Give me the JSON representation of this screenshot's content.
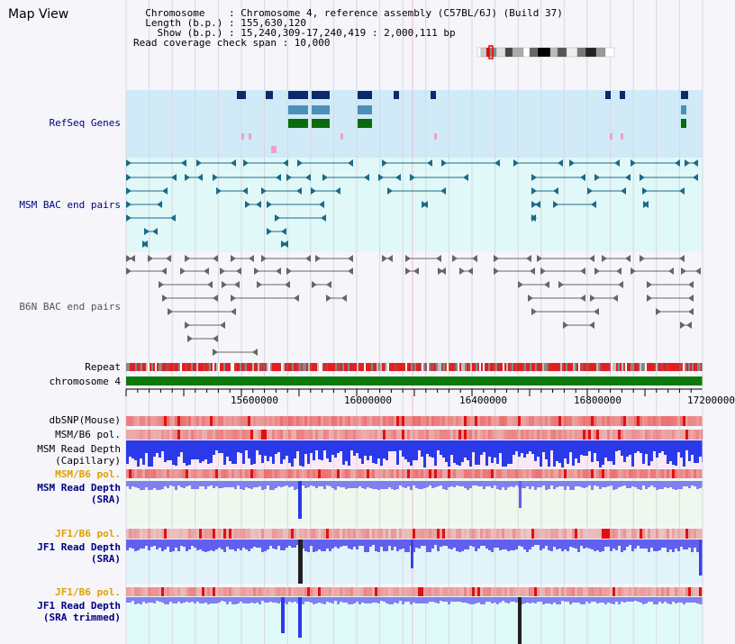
{
  "header": {
    "title": "Map View",
    "info_lines": [
      "  Chromosome    : Chromosome 4, reference assembly (C57BL/6J) (Build 37)",
      "  Length (b.p.) : 155,630,120",
      "    Show (b.p.) : 15,240,309-17,240,419 : 2,000,111 bp",
      "Read coverage check span : 10,000"
    ]
  },
  "tracks": {
    "refseq": "RefSeq Genes",
    "msm_bac": "MSM BAC end pairs",
    "b6n_bac": "B6N BAC end pairs",
    "repeat": "Repeat",
    "chromosome": "chromosome 4",
    "dbsnp": "dbSNP(Mouse)",
    "msm_b6_pol_1": "MSM/B6 pol.",
    "msm_read_depth_cap_1": "MSM Read Depth",
    "msm_read_depth_cap_2": "(Capillary)",
    "msm_b6_pol_2": "MSM/B6 pol.",
    "msm_read_depth_sra_1": "MSM Read Depth",
    "msm_read_depth_sra_2": "(SRA)",
    "jf1_b6_pol_1": "JF1/B6 pol.",
    "jf1_read_depth_sra_1": "JF1 Read Depth",
    "jf1_read_depth_sra_2": "(SRA)",
    "jf1_b6_pol_2": "JF1/B6 pol.",
    "jf1_read_depth_trim_1": "JF1 Read Depth",
    "jf1_read_depth_trim_2": "(SRA trimmed)"
  },
  "axis": {
    "ticks": [
      "15600000",
      "16000000",
      "16400000",
      "16800000",
      "17200000"
    ]
  },
  "colors": {
    "gene_dark": "#0b2a6b",
    "gene_mid": "#4a90b8",
    "gene_green": "#0a6b0a",
    "msm_bac": "#1a6a8a",
    "b6n_bac": "#666666",
    "label_navy": "#000080",
    "label_orange": "#e0a000"
  }
}
